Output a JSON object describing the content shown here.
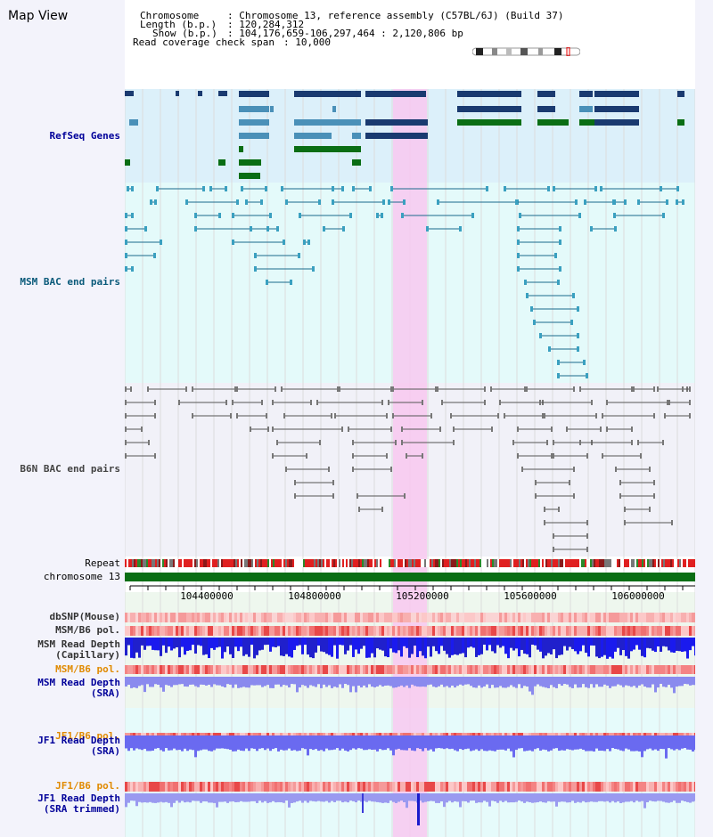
{
  "page": {
    "title": "Map View"
  },
  "header": {
    "chromosome_key": "Chromosome",
    "chromosome_val": ": Chromosome 13, reference assembly (C57BL/6J) (Build 37)",
    "length_key": "Length (b.p.)",
    "length_val": ": 120,284,312",
    "show_key": "Show (b.p.)",
    "show_val": ": 104,176,659-106,297,464 : 2,120,806 bp",
    "coverage_key": "Read coverage check span",
    "coverage_val": ": 10,000"
  },
  "axis": {
    "ticks": [
      "104400000",
      "104800000",
      "105200000",
      "105600000",
      "106000000"
    ]
  },
  "tracks": {
    "refseq": "RefSeq Genes",
    "msm_bac": "MSM BAC end pairs",
    "b6n_bac": "B6N BAC end pairs",
    "repeat": "Repeat",
    "chromosome": "chromosome 13",
    "dbsnp": "dbSNP(Mouse)",
    "msm_b6_pol_1": "MSM/B6 pol.",
    "msm_depth_cap": "MSM Read Depth\n(Capillary)",
    "msm_b6_pol_2": "MSM/B6 pol.",
    "msm_depth_sra": "MSM Read Depth\n(SRA)",
    "jf1_b6_pol_1": "JF1/B6 pol.",
    "jf1_depth_sra": "JF1 Read Depth\n(SRA)",
    "jf1_b6_pol_2": "JF1/B6 pol.",
    "jf1_depth_trim": "JF1 Read Depth\n(SRA trimmed)"
  },
  "colors": {
    "refseq_bg": "#dcf0fa",
    "msm_bg": "#e4fafa",
    "b6n_bg": "#f1f1f8",
    "highlight": "#f8c8f0",
    "gene_dark": "#1a3a70",
    "gene_mid": "#4a90b8",
    "gene_green": "#0a6e14",
    "msm_line": "#1a6a8c",
    "b6n_line": "#555555",
    "label_blue": "#00009a",
    "label_teal": "#0a5a7a",
    "label_orange": "#e08a00"
  }
}
